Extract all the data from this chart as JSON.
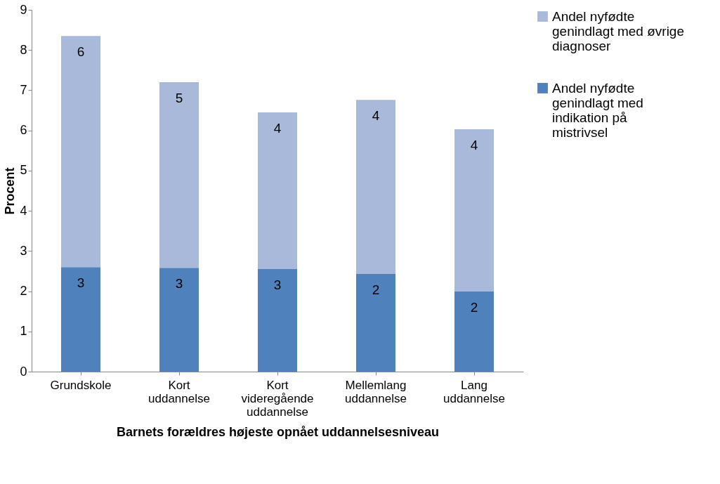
{
  "chart_data": {
    "type": "bar",
    "stacked": true,
    "xlabel": "Barnets forældres højeste opnået uddannelsesniveau",
    "ylabel": "Procent",
    "categories": [
      "Grundskole",
      "Kort uddannelse",
      "Kort videregående uddannelse",
      "Mellemlang uddannelse",
      "Lang uddannelse"
    ],
    "series": [
      {
        "name": "Andel nyfødte genindlagt med indikation på mistrivsel",
        "color": "#4f81bd",
        "values": [
          2.6,
          2.58,
          2.56,
          2.43,
          2.0
        ],
        "value_labels": [
          "3",
          "3",
          "3",
          "2",
          "2"
        ]
      },
      {
        "name": "Andel nyfødte genindlagt med øvrige diagnoser",
        "color": "#a9b9d9",
        "values": [
          5.75,
          4.62,
          3.89,
          4.33,
          4.03
        ],
        "value_labels": [
          "6",
          "5",
          "4",
          "4",
          "4"
        ]
      }
    ],
    "ylim": [
      0,
      9
    ],
    "yticks": [
      0,
      1,
      2,
      3,
      4,
      5,
      6,
      7,
      8,
      9
    ],
    "grid": false,
    "legend": "right"
  }
}
